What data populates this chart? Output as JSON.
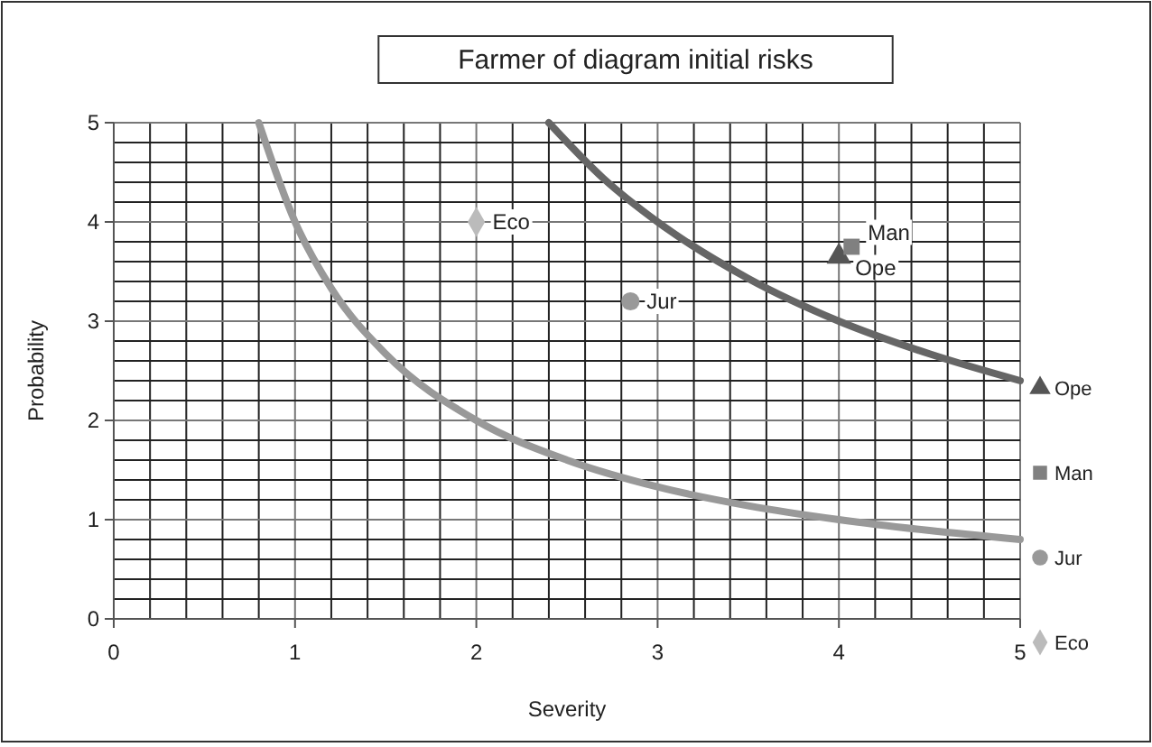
{
  "chart_data": {
    "type": "scatter",
    "title": "Farmer of diagram initial risks",
    "xlabel": "Severity",
    "ylabel": "Probability",
    "xlim": [
      0,
      5
    ],
    "ylim": [
      0,
      5
    ],
    "xticks": [
      0,
      {
        "value": 0.2,
        "label": null
      },
      {
        "value": 0.4,
        "label": null
      },
      {
        "value": 0.6,
        "label": null
      },
      {
        "value": 0.8,
        "label": null
      },
      1,
      {
        "value": 1.2,
        "label": null
      },
      {
        "value": 1.4,
        "label": null
      },
      {
        "value": 1.6,
        "label": null
      },
      {
        "value": 1.8,
        "label": null
      },
      2,
      {
        "value": 2.2,
        "label": null
      },
      {
        "value": 2.4,
        "label": null
      },
      {
        "value": 2.6,
        "label": null
      },
      {
        "value": 2.8,
        "label": null
      },
      3,
      {
        "value": 3.2,
        "label": null
      },
      {
        "value": 3.4,
        "label": null
      },
      {
        "value": 3.6,
        "label": null
      },
      {
        "value": 3.8,
        "label": null
      },
      4,
      {
        "value": 4.2,
        "label": null
      },
      {
        "value": 4.4,
        "label": null
      },
      {
        "value": 4.6,
        "label": null
      },
      {
        "value": 4.8,
        "label": null
      },
      5
    ],
    "yticks": [
      0,
      {
        "value": 0.2,
        "label": null
      },
      {
        "value": 0.4,
        "label": null
      },
      {
        "value": 0.6,
        "label": null
      },
      {
        "value": 0.8,
        "label": null
      },
      1,
      {
        "value": 1.2,
        "label": null
      },
      {
        "value": 1.4,
        "label": null
      },
      {
        "value": 1.6,
        "label": null
      },
      {
        "value": 1.8,
        "label": null
      },
      2,
      {
        "value": 2.2,
        "label": null
      },
      {
        "value": 2.4,
        "label": null
      },
      {
        "value": 2.6,
        "label": null
      },
      {
        "value": 2.8,
        "label": null
      },
      3,
      {
        "value": 3.2,
        "label": null
      },
      {
        "value": 3.4,
        "label": null
      },
      {
        "value": 3.6,
        "label": null
      },
      {
        "value": 3.8,
        "label": null
      },
      4,
      {
        "value": 4.2,
        "label": null
      },
      {
        "value": 4.4,
        "label": null
      },
      {
        "value": 4.6,
        "label": null
      },
      {
        "value": 4.8,
        "label": null
      },
      5
    ],
    "grid": true,
    "legend": "right",
    "series": [
      {
        "type": "line",
        "color": "#999999",
        "x": [
          0.8,
          1,
          1.2,
          1.5,
          2,
          2.5,
          3,
          3.5,
          4,
          4.5,
          5
        ],
        "values": [
          5,
          4,
          3.33,
          2.67,
          2,
          1.6,
          1.33,
          1.14,
          1,
          0.89,
          0.8
        ]
      },
      {
        "type": "line",
        "color": "#666666",
        "x": [
          2.4,
          2.7,
          3,
          3.5,
          4,
          4.5,
          5
        ],
        "values": [
          5,
          4.44,
          4,
          3.43,
          3,
          2.67,
          2.4
        ]
      },
      {
        "name": "Ope",
        "color": "#555555",
        "marker": "triangle",
        "x": [
          4
        ],
        "values": [
          3.65
        ]
      },
      {
        "name": "Man",
        "color": "#808080",
        "marker": "square",
        "x": [
          4.07
        ],
        "values": [
          3.75
        ]
      },
      {
        "name": "Jur",
        "color": "#999999",
        "marker": "circle",
        "x": [
          2.85
        ],
        "values": [
          3.2
        ]
      },
      {
        "name": "Eco",
        "color": "#bbbbbb",
        "marker": "diamond",
        "x": [
          2
        ],
        "values": [
          4
        ]
      }
    ]
  }
}
